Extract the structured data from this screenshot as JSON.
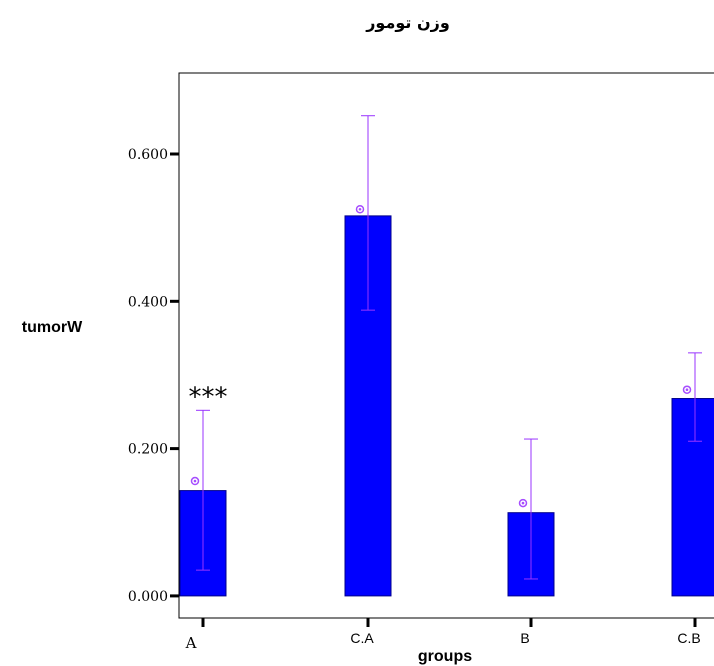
{
  "chart_data": {
    "type": "bar",
    "title": "وزن تومور",
    "xlabel": "groups",
    "ylabel": "tumorW",
    "categories": [
      "A",
      "C.A",
      "B",
      "C.B"
    ],
    "values": [
      0.143,
      0.516,
      0.113,
      0.268
    ],
    "error_bars": {
      "upper": [
        0.252,
        0.652,
        0.213,
        0.33
      ],
      "lower": [
        0.035,
        0.388,
        0.023,
        0.21
      ]
    },
    "markers": [
      0.156,
      0.525,
      0.126,
      0.28
    ],
    "yticks": [
      "0.000",
      "0.200",
      "0.400",
      "0.600"
    ],
    "ytick_values": [
      0,
      0.2,
      0.4,
      0.6
    ],
    "ylim": [
      -0.03,
      0.71
    ],
    "annotations": [
      {
        "category": "A",
        "text": "***"
      }
    ],
    "grid": false,
    "colors": {
      "bar_fill": "#0000ff",
      "bar_stroke": "#00008b",
      "error_bar": "#9933ff",
      "marker": "#a64dff",
      "axis": "#000000"
    }
  }
}
